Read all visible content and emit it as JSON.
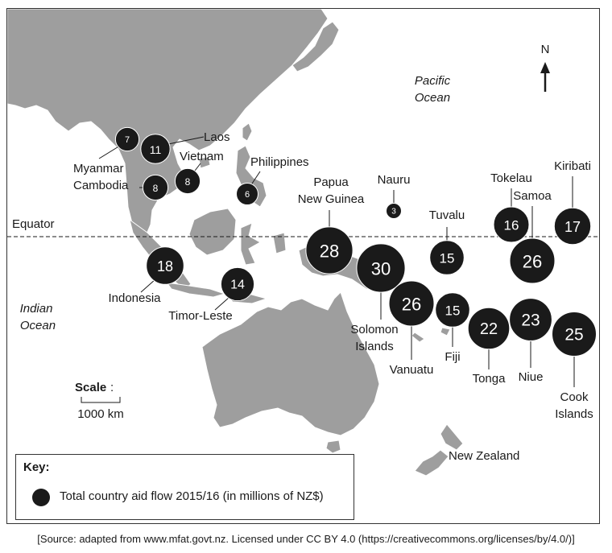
{
  "source": "[Source: adapted from www.mfat.govt.nz. Licensed under CC BY 4.0 (https://creativecommons.org/licenses/by/4.0/)]",
  "north_label": "N",
  "equator_label": "Equator",
  "oceans": {
    "pacific": [
      "Pacific",
      "Ocean"
    ],
    "indian": [
      "Indian",
      "Ocean"
    ]
  },
  "scale": {
    "title": "Scale",
    "distance": "1000 km"
  },
  "key": {
    "title": "Key:",
    "label": "Total country aid flow 2015/16 (in millions of NZ$)"
  },
  "new_zealand_label": "New Zealand",
  "colors": {
    "bubble": "#1a1a1a",
    "land": "#9e9e9e",
    "land_stroke": "#ffffff",
    "text": "#1a1a1a"
  },
  "countries": [
    {
      "name": [
        "Myanmar"
      ],
      "value": 7
    },
    {
      "name": [
        "Laos"
      ],
      "value": 11
    },
    {
      "name": [
        "Vietnam"
      ],
      "value": 8
    },
    {
      "name": [
        "Cambodia"
      ],
      "value": 8
    },
    {
      "name": [
        "Philippines"
      ],
      "value": 6
    },
    {
      "name": [
        "Papua",
        "New Guinea"
      ],
      "value": 28
    },
    {
      "name": [
        "Nauru"
      ],
      "value": 3
    },
    {
      "name": [
        "Tuvalu"
      ],
      "value": 15
    },
    {
      "name": [
        "Tokelau"
      ],
      "value": 16
    },
    {
      "name": [
        "Samoa"
      ],
      "value": 26
    },
    {
      "name": [
        "Kiribati"
      ],
      "value": 17
    },
    {
      "name": [
        "Indonesia"
      ],
      "value": 18
    },
    {
      "name": [
        "Timor-Leste"
      ],
      "value": 14
    },
    {
      "name": [
        "Solomon",
        "Islands"
      ],
      "value": 30
    },
    {
      "name": [
        "Vanuatu"
      ],
      "value": 26
    },
    {
      "name": [
        "Fiji"
      ],
      "value": 15
    },
    {
      "name": [
        "Tonga"
      ],
      "value": 22
    },
    {
      "name": [
        "Niue"
      ],
      "value": 23
    },
    {
      "name": [
        "Cook",
        "Islands"
      ],
      "value": 25
    }
  ]
}
